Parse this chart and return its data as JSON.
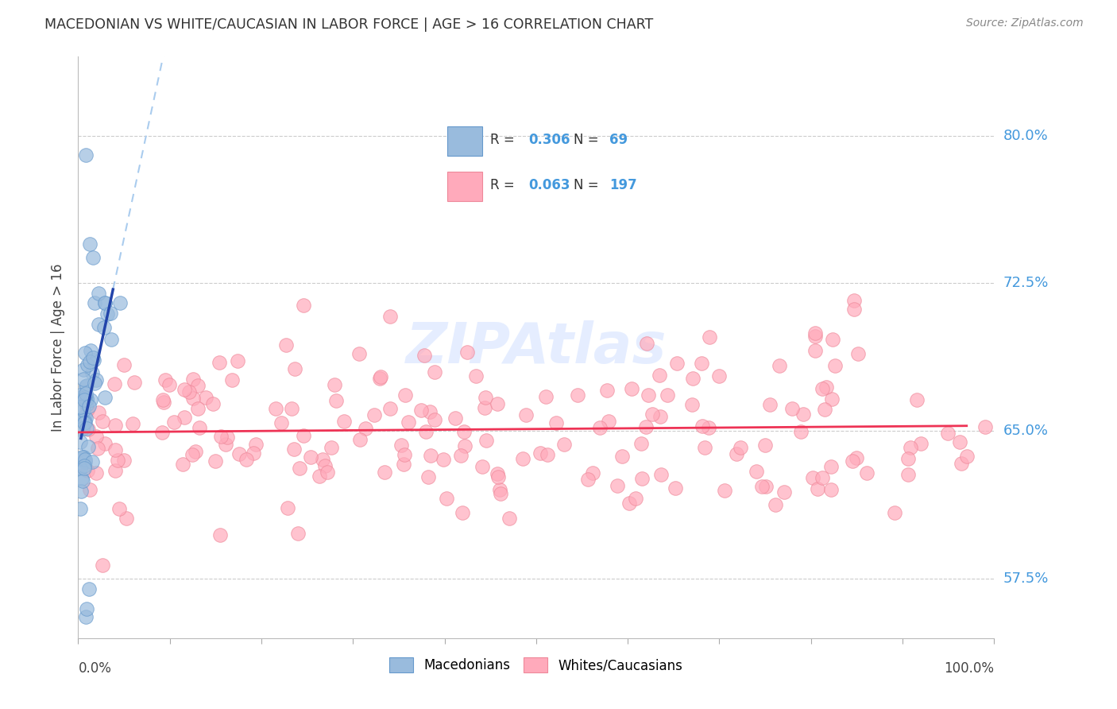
{
  "title": "MACEDONIAN VS WHITE/CAUCASIAN IN LABOR FORCE | AGE > 16 CORRELATION CHART",
  "source": "Source: ZipAtlas.com",
  "ylabel": "In Labor Force | Age > 16",
  "ytick_labels": [
    "57.5%",
    "65.0%",
    "72.5%",
    "80.0%"
  ],
  "ytick_values": [
    0.575,
    0.65,
    0.725,
    0.8
  ],
  "xlim": [
    0.0,
    1.0
  ],
  "ylim": [
    0.545,
    0.84
  ],
  "blue_color": "#99BBDD",
  "blue_edge_color": "#6699CC",
  "pink_color": "#FFAABB",
  "pink_edge_color": "#EE8899",
  "blue_line_color": "#2244AA",
  "pink_line_color": "#EE3355",
  "blue_dash_color": "#AACCEE",
  "legend_blue_R": "0.306",
  "legend_blue_N": "69",
  "legend_pink_R": "0.063",
  "legend_pink_N": "197",
  "label_color": "#4499DD",
  "grid_color": "#CCCCCC",
  "watermark_text": "ZIPAtlas",
  "watermark_color": "#CCDDFF",
  "xtick_positions": [
    0.0,
    0.1,
    0.2,
    0.3,
    0.4,
    0.5,
    0.6,
    0.7,
    0.8,
    0.9,
    1.0
  ],
  "legend_entries": [
    "Macedonians",
    "Whites/Caucasians"
  ]
}
